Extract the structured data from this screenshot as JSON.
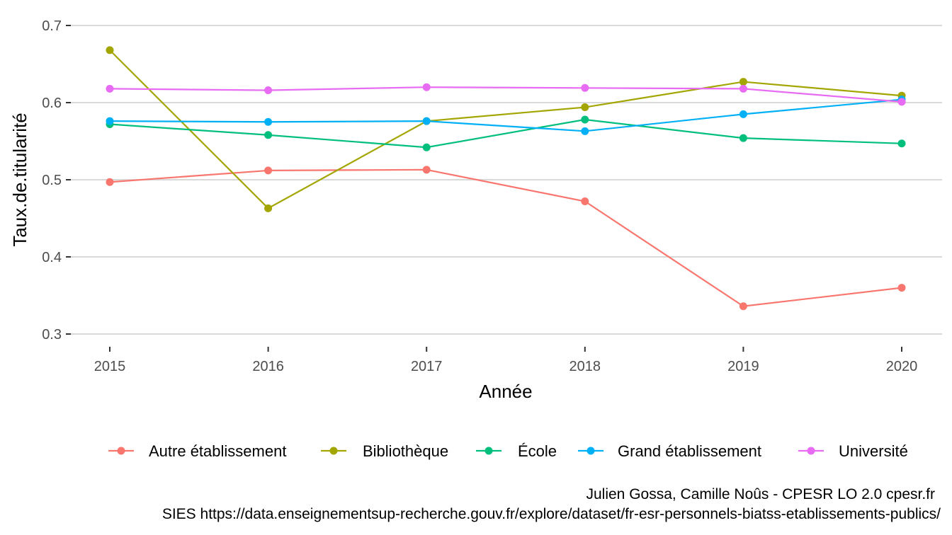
{
  "chart_data": {
    "type": "line",
    "xlabel": "Année",
    "ylabel": "Taux.de.titularité",
    "x": [
      2015,
      2016,
      2017,
      2018,
      2019,
      2020
    ],
    "x_tick_labels": [
      "2015",
      "2016",
      "2017",
      "2018",
      "2019",
      "2020"
    ],
    "ylim": [
      0.3,
      0.7
    ],
    "y_ticks": [
      0.3,
      0.4,
      0.5,
      0.6,
      0.7
    ],
    "y_tick_labels": [
      "0.3",
      "0.4",
      "0.5",
      "0.6",
      "0.7"
    ],
    "grid": true,
    "legend_position": "bottom",
    "series": [
      {
        "name": "Autre établissement",
        "color": "#F8766D",
        "values": [
          0.497,
          0.512,
          0.513,
          0.472,
          0.336,
          0.36
        ]
      },
      {
        "name": "Bibliothèque",
        "color": "#A3A500",
        "values": [
          0.668,
          0.463,
          0.576,
          0.594,
          0.627,
          0.609
        ]
      },
      {
        "name": "École",
        "color": "#00BF7D",
        "values": [
          0.572,
          0.558,
          0.542,
          0.578,
          0.554,
          0.547
        ]
      },
      {
        "name": "Grand établissement",
        "color": "#00B0F6",
        "values": [
          0.576,
          0.575,
          0.576,
          0.563,
          0.585,
          0.604
        ]
      },
      {
        "name": "Université",
        "color": "#E76BF3",
        "values": [
          0.618,
          0.616,
          0.62,
          0.619,
          0.618,
          0.601
        ]
      }
    ],
    "caption_lines": [
      "Julien Gossa, Camille Noûs - CPESR LO 2.0 cpesr.fr",
      "SIES https://data.enseignementsup-recherche.gouv.fr/explore/dataset/fr-esr-personnels-biatss-etablissements-publics/"
    ]
  }
}
